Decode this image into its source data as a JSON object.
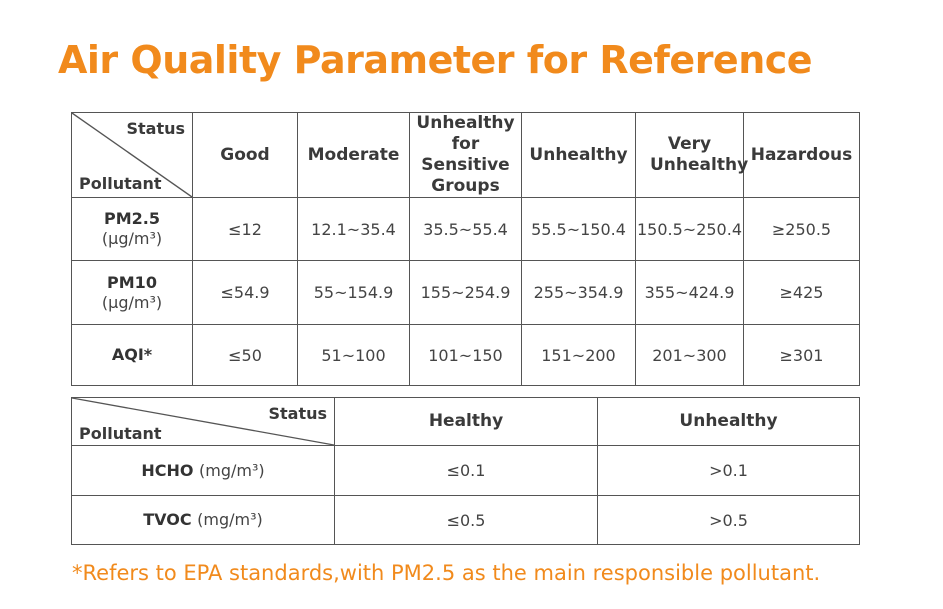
{
  "title": "Air Quality Parameter for Reference",
  "table1": {
    "corner_status": "Status",
    "corner_pollutant": "Pollutant",
    "headers": [
      "Good",
      "Moderate",
      "Unhealthy for Sensitive Groups",
      "Unhealthy",
      "Very Unhealthy",
      "Hazardous"
    ],
    "rows": [
      {
        "name": "PM2.5",
        "unit": "(μg/m³)",
        "values": [
          "≤12",
          "12.1~35.4",
          "35.5~55.4",
          "55.5~150.4",
          "150.5~250.4",
          "≥250.5"
        ]
      },
      {
        "name": "PM10",
        "unit": "(μg/m³)",
        "values": [
          "≤54.9",
          "55~154.9",
          "155~254.9",
          "255~354.9",
          "355~424.9",
          "≥425"
        ]
      },
      {
        "name": "AQI*",
        "unit": "",
        "values": [
          "≤50",
          "51~100",
          "101~150",
          "151~200",
          "201~300",
          "≥301"
        ]
      }
    ]
  },
  "table2": {
    "corner_status": "Status",
    "corner_pollutant": "Pollutant",
    "headers": [
      "Healthy",
      "Unhealthy"
    ],
    "rows": [
      {
        "name": "HCHO",
        "unit": "(mg/m³)",
        "values": [
          "≤0.1",
          ">0.1"
        ]
      },
      {
        "name": "TVOC",
        "unit": "(mg/m³)",
        "values": [
          "≤0.5",
          ">0.5"
        ]
      }
    ]
  },
  "footnote": "*Refers to EPA standards,with PM2.5 as the main responsible pollutant.",
  "colors": {
    "accent": "#f18a1c",
    "border": "#555555",
    "text": "#3a3a3a"
  }
}
